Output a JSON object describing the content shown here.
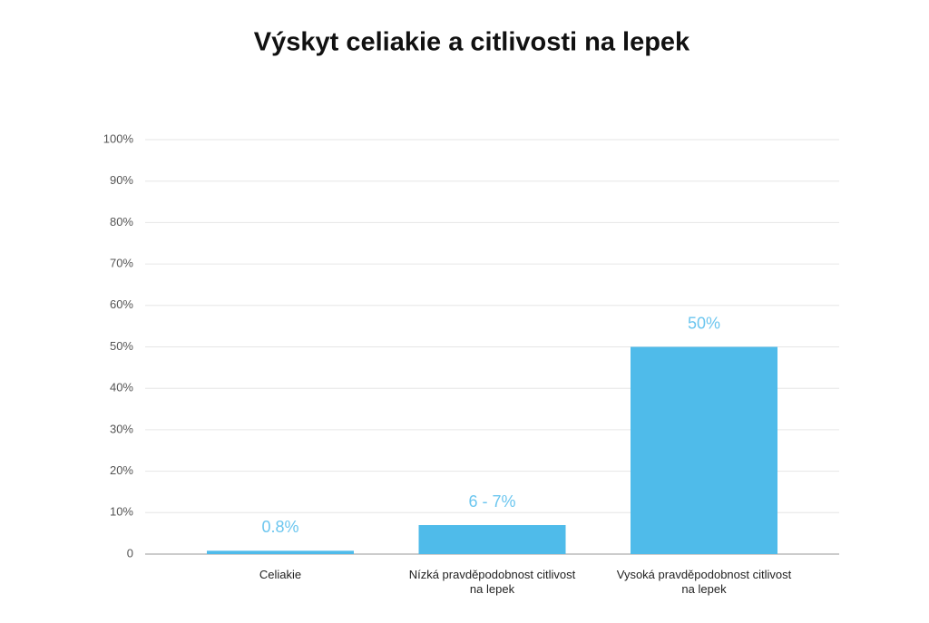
{
  "chart_data": {
    "type": "bar",
    "title": "Výskyt celiakie a citlivosti na lepek",
    "categories": [
      "Celiakie",
      "Nízká pravděpodobnost citlivost na lepek",
      "Vysoká pravděpodobnost citlivost na lepek"
    ],
    "values": [
      0.8,
      7,
      50
    ],
    "value_labels": [
      "0.8%",
      "6 - 7%",
      "50%"
    ],
    "color": "#4fbbea",
    "ylim": [
      0,
      100
    ],
    "yticks": [
      0,
      {
        "value": 10,
        "label": "10%"
      },
      {
        "value": 20,
        "label": "20%"
      },
      {
        "value": 30,
        "label": "30%"
      },
      {
        "value": 40,
        "label": "40%"
      },
      {
        "value": 50,
        "label": "50%"
      },
      {
        "value": 60,
        "label": "60%"
      },
      {
        "value": 70,
        "label": "70%"
      },
      {
        "value": 80,
        "label": "80%"
      },
      {
        "value": 90,
        "label": "90%"
      },
      {
        "value": 100,
        "label": "100%"
      }
    ],
    "grid": true
  }
}
